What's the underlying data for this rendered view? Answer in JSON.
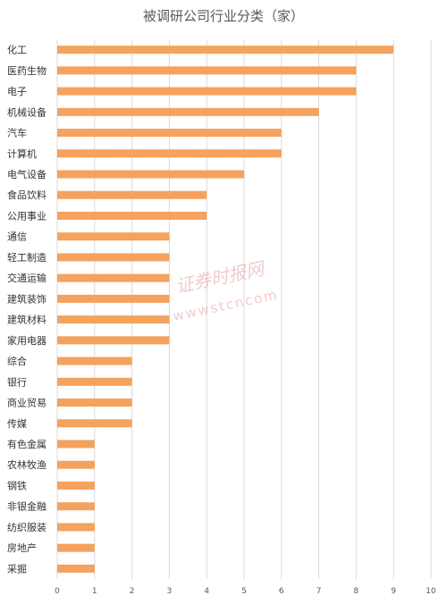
{
  "chart_data": {
    "type": "bar",
    "orientation": "horizontal",
    "title": "被调研公司行业分类（家）",
    "xlabel": "",
    "ylabel": "",
    "xlim": [
      0,
      10
    ],
    "x_ticks": [
      "0",
      "1",
      "2",
      "3",
      "4",
      "5",
      "6",
      "7",
      "8",
      "9",
      "10"
    ],
    "grid": true,
    "legend": "none",
    "bar_color": "#f4a25d",
    "categories": [
      "化工",
      "医药生物",
      "电子",
      "机械设备",
      "汽车",
      "计算机",
      "电气设备",
      "食品饮料",
      "公用事业",
      "通信",
      "轻工制造",
      "交通运输",
      "建筑装饰",
      "建筑材料",
      "家用电器",
      "综合",
      "银行",
      "商业贸易",
      "传媒",
      "有色金属",
      "农林牧渔",
      "钢铁",
      "非银金融",
      "纺织服装",
      "房地产",
      "采掘"
    ],
    "values": [
      9,
      8,
      8,
      7,
      6,
      6,
      5,
      4,
      4,
      3,
      3,
      3,
      3,
      3,
      3,
      2,
      2,
      2,
      2,
      1,
      1,
      1,
      1,
      1,
      1,
      1
    ]
  },
  "watermark": {
    "text": "证券时报网",
    "url": "wwwstcncom",
    "color": "#e9a0a0"
  }
}
